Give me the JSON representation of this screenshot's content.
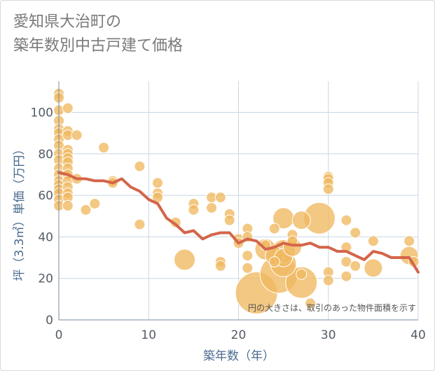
{
  "chart_data": {
    "type": "scatter",
    "title": "愛知県大治町の\n築年数別中古戸建て価格",
    "xlabel": "築年数（年）",
    "ylabel": "坪（3.3㎡）単価（万円）",
    "xlim": [
      0,
      40
    ],
    "ylim": [
      0,
      115
    ],
    "x_ticks": [
      "0",
      "10",
      "20",
      "30",
      "40"
    ],
    "y_ticks": [
      "0",
      "20",
      "40",
      "60",
      "80",
      "100"
    ],
    "note": "円の大きさは、取引のあった物件面積を示す",
    "grid": true,
    "colors": {
      "bubble": "#f0b860",
      "bubble_stroke": "#ffffff",
      "line": "#d4654a",
      "grid": "#c8d7e3",
      "axis": "#7a8d9e"
    },
    "points": [
      {
        "x": 0,
        "y": 109,
        "s": 1
      },
      {
        "x": 0,
        "y": 107,
        "s": 1
      },
      {
        "x": 0,
        "y": 101,
        "s": 1
      },
      {
        "x": 0,
        "y": 96,
        "s": 1
      },
      {
        "x": 0,
        "y": 92,
        "s": 1
      },
      {
        "x": 0,
        "y": 90,
        "s": 1
      },
      {
        "x": 0,
        "y": 87,
        "s": 1
      },
      {
        "x": 0,
        "y": 84,
        "s": 1
      },
      {
        "x": 0,
        "y": 80,
        "s": 1
      },
      {
        "x": 0,
        "y": 77,
        "s": 1
      },
      {
        "x": 0,
        "y": 73,
        "s": 1
      },
      {
        "x": 0,
        "y": 70,
        "s": 1
      },
      {
        "x": 0,
        "y": 67,
        "s": 1
      },
      {
        "x": 0,
        "y": 65,
        "s": 1
      },
      {
        "x": 0,
        "y": 63,
        "s": 1
      },
      {
        "x": 0,
        "y": 61,
        "s": 1
      },
      {
        "x": 0,
        "y": 58,
        "s": 1
      },
      {
        "x": 0,
        "y": 55,
        "s": 1
      },
      {
        "x": 1,
        "y": 102,
        "s": 1
      },
      {
        "x": 1,
        "y": 91,
        "s": 1
      },
      {
        "x": 1,
        "y": 89,
        "s": 1
      },
      {
        "x": 1,
        "y": 82,
        "s": 1
      },
      {
        "x": 1,
        "y": 80,
        "s": 1
      },
      {
        "x": 1,
        "y": 78,
        "s": 1
      },
      {
        "x": 1,
        "y": 76,
        "s": 1
      },
      {
        "x": 1,
        "y": 73,
        "s": 1
      },
      {
        "x": 1,
        "y": 70,
        "s": 1
      },
      {
        "x": 1,
        "y": 67,
        "s": 1
      },
      {
        "x": 1,
        "y": 64,
        "s": 1
      },
      {
        "x": 1,
        "y": 61,
        "s": 1
      },
      {
        "x": 1,
        "y": 59,
        "s": 1
      },
      {
        "x": 1,
        "y": 55,
        "s": 1
      },
      {
        "x": 2,
        "y": 89,
        "s": 1
      },
      {
        "x": 2,
        "y": 68,
        "s": 1
      },
      {
        "x": 3,
        "y": 53,
        "s": 1
      },
      {
        "x": 4,
        "y": 56,
        "s": 1
      },
      {
        "x": 5,
        "y": 83,
        "s": 1
      },
      {
        "x": 6,
        "y": 67,
        "s": 1
      },
      {
        "x": 6,
        "y": 66,
        "s": 1
      },
      {
        "x": 9,
        "y": 74,
        "s": 1
      },
      {
        "x": 9,
        "y": 46,
        "s": 1
      },
      {
        "x": 11,
        "y": 66,
        "s": 1
      },
      {
        "x": 11,
        "y": 61,
        "s": 1
      },
      {
        "x": 11,
        "y": 59,
        "s": 1
      },
      {
        "x": 13,
        "y": 47,
        "s": 1
      },
      {
        "x": 14,
        "y": 29,
        "s": 4
      },
      {
        "x": 15,
        "y": 56,
        "s": 1
      },
      {
        "x": 15,
        "y": 53,
        "s": 1
      },
      {
        "x": 17,
        "y": 59,
        "s": 1
      },
      {
        "x": 17,
        "y": 54,
        "s": 1
      },
      {
        "x": 18,
        "y": 59,
        "s": 1
      },
      {
        "x": 18,
        "y": 28,
        "s": 1
      },
      {
        "x": 18,
        "y": 26,
        "s": 1
      },
      {
        "x": 19,
        "y": 51,
        "s": 1
      },
      {
        "x": 19,
        "y": 48,
        "s": 1
      },
      {
        "x": 20,
        "y": 39,
        "s": 1
      },
      {
        "x": 20,
        "y": 37,
        "s": 1
      },
      {
        "x": 21,
        "y": 44,
        "s": 1
      },
      {
        "x": 21,
        "y": 40,
        "s": 1
      },
      {
        "x": 21,
        "y": 31,
        "s": 1
      },
      {
        "x": 21,
        "y": 25,
        "s": 1
      },
      {
        "x": 22,
        "y": 13,
        "s": 16
      },
      {
        "x": 23,
        "y": 36,
        "s": 1
      },
      {
        "x": 23,
        "y": 34,
        "s": 4
      },
      {
        "x": 24,
        "y": 44,
        "s": 1
      },
      {
        "x": 24,
        "y": 31,
        "s": 3
      },
      {
        "x": 24,
        "y": 28,
        "s": 1
      },
      {
        "x": 24.5,
        "y": 22,
        "s": 13
      },
      {
        "x": 25,
        "y": 49,
        "s": 4
      },
      {
        "x": 25,
        "y": 33,
        "s": 5
      },
      {
        "x": 25,
        "y": 30,
        "s": 3
      },
      {
        "x": 25,
        "y": 27,
        "s": 6
      },
      {
        "x": 26,
        "y": 41,
        "s": 1
      },
      {
        "x": 26,
        "y": 38,
        "s": 1
      },
      {
        "x": 26,
        "y": 35,
        "s": 3
      },
      {
        "x": 27,
        "y": 48,
        "s": 3
      },
      {
        "x": 27,
        "y": 22,
        "s": 1
      },
      {
        "x": 27,
        "y": 18,
        "s": 9
      },
      {
        "x": 28,
        "y": 8,
        "s": 1
      },
      {
        "x": 29,
        "y": 49,
        "s": 9
      },
      {
        "x": 30,
        "y": 69,
        "s": 1
      },
      {
        "x": 30,
        "y": 68,
        "s": 1
      },
      {
        "x": 30,
        "y": 66,
        "s": 1
      },
      {
        "x": 30,
        "y": 63,
        "s": 1
      },
      {
        "x": 30,
        "y": 23,
        "s": 1
      },
      {
        "x": 30,
        "y": 19,
        "s": 1
      },
      {
        "x": 32,
        "y": 48,
        "s": 1
      },
      {
        "x": 32,
        "y": 35,
        "s": 1
      },
      {
        "x": 32,
        "y": 28,
        "s": 1
      },
      {
        "x": 32,
        "y": 21,
        "s": 1
      },
      {
        "x": 33,
        "y": 42,
        "s": 1
      },
      {
        "x": 33,
        "y": 26,
        "s": 1
      },
      {
        "x": 35,
        "y": 38,
        "s": 1
      },
      {
        "x": 35,
        "y": 25,
        "s": 3
      },
      {
        "x": 39,
        "y": 38,
        "s": 1
      },
      {
        "x": 39,
        "y": 31,
        "s": 3
      },
      {
        "x": 39.5,
        "y": 28,
        "s": 1
      }
    ],
    "trend": {
      "name": "",
      "x": [
        0,
        1,
        2,
        3,
        4,
        5,
        6,
        7,
        8,
        9,
        10,
        11,
        12,
        13,
        14,
        15,
        16,
        17,
        18,
        19,
        20,
        21,
        22,
        23,
        24,
        25,
        26,
        27,
        28,
        29,
        30,
        31,
        32,
        33,
        34,
        35,
        36,
        37,
        38,
        39,
        40
      ],
      "y": [
        71,
        70,
        68,
        68,
        67,
        67,
        66,
        68,
        64,
        62,
        58,
        56,
        49,
        46,
        42,
        43,
        39,
        41,
        42,
        42,
        37,
        39,
        38,
        34,
        35,
        37,
        36,
        36,
        37,
        35,
        35,
        33,
        33,
        31,
        29,
        33,
        32,
        30,
        30,
        30,
        23
      ]
    }
  }
}
